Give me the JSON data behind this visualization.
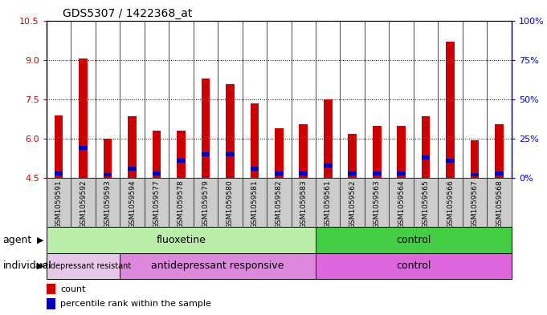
{
  "title": "GDS5307 / 1422368_at",
  "samples": [
    "GSM1059591",
    "GSM1059592",
    "GSM1059593",
    "GSM1059594",
    "GSM1059577",
    "GSM1059578",
    "GSM1059579",
    "GSM1059580",
    "GSM1059581",
    "GSM1059582",
    "GSM1059583",
    "GSM1059561",
    "GSM1059562",
    "GSM1059563",
    "GSM1059564",
    "GSM1059565",
    "GSM1059566",
    "GSM1059567",
    "GSM1059568"
  ],
  "counts": [
    6.9,
    9.05,
    6.0,
    6.85,
    6.3,
    6.3,
    8.3,
    8.1,
    7.35,
    6.4,
    6.55,
    7.5,
    6.2,
    6.5,
    6.5,
    6.85,
    9.7,
    5.95,
    6.55
  ],
  "percentiles": [
    2,
    18,
    1,
    5,
    2,
    10,
    14,
    14,
    5,
    2,
    2,
    7,
    2,
    2,
    2,
    12,
    10,
    1,
    2
  ],
  "ymin": 4.5,
  "ymax": 10.5,
  "yticks": [
    4.5,
    6.0,
    7.5,
    9.0,
    10.5
  ],
  "y2min": 0,
  "y2max": 100,
  "y2ticks": [
    0,
    25,
    50,
    75,
    100
  ],
  "y2ticklabels": [
    "0%",
    "25%",
    "50%",
    "75%",
    "100%"
  ],
  "bar_color": "#cc0000",
  "percentile_color": "#0000bb",
  "agent_groups": [
    {
      "label": "fluoxetine",
      "start": 0,
      "end": 10,
      "color": "#bbeeaa"
    },
    {
      "label": "control",
      "start": 11,
      "end": 18,
      "color": "#44cc44"
    }
  ],
  "individual_groups": [
    {
      "label": "antidepressant resistant",
      "start": 0,
      "end": 2,
      "color": "#e8b8e8"
    },
    {
      "label": "antidepressant responsive",
      "start": 3,
      "end": 10,
      "color": "#dd88dd"
    },
    {
      "label": "control",
      "start": 11,
      "end": 18,
      "color": "#dd66dd"
    }
  ],
  "agent_label": "agent",
  "individual_label": "individual",
  "legend_count_label": "count",
  "legend_pct_label": "percentile rank within the sample",
  "left_axis_color": "#cc0000",
  "right_axis_color": "#0000bb",
  "xtick_bg": "#cccccc",
  "plot_bg": "#ffffff"
}
